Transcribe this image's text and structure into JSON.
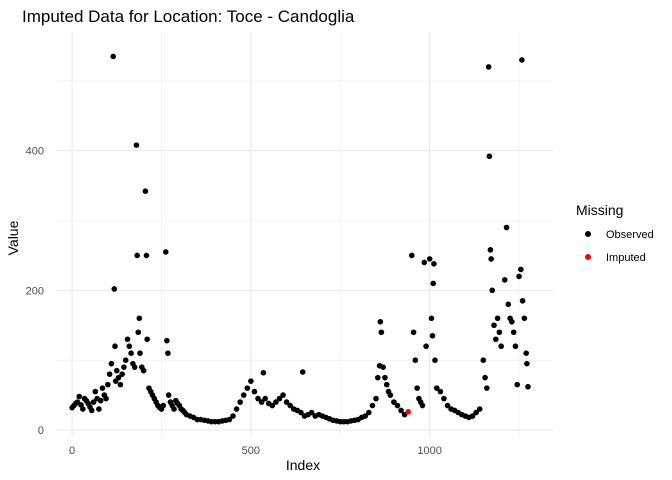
{
  "chart_data": {
    "type": "scatter",
    "title": "Imputed Data for Location: Toce - Candoglia",
    "xlabel": "Index",
    "ylabel": "Value",
    "xlim": [
      -45,
      1345
    ],
    "ylim": [
      -10,
      570
    ],
    "x_ticks": [
      0,
      500,
      1000
    ],
    "y_ticks": [
      0,
      200,
      400
    ],
    "x_tick_labels": [
      "0",
      "500",
      "1000"
    ],
    "y_tick_labels": [
      "0",
      "200",
      "400"
    ],
    "grid": true,
    "legend": {
      "title": "Missing",
      "placement": "right",
      "entries": [
        {
          "label": "Observed",
          "color": "#000000"
        },
        {
          "label": "Imputed",
          "color": "#ff0000"
        }
      ]
    },
    "series": [
      {
        "name": "Observed",
        "color": "#000000",
        "points": [
          [
            0,
            32
          ],
          [
            5,
            35
          ],
          [
            10,
            38
          ],
          [
            15,
            40
          ],
          [
            20,
            48
          ],
          [
            25,
            36
          ],
          [
            30,
            30
          ],
          [
            35,
            45
          ],
          [
            40,
            42
          ],
          [
            45,
            38
          ],
          [
            50,
            33
          ],
          [
            55,
            28
          ],
          [
            60,
            40
          ],
          [
            65,
            55
          ],
          [
            70,
            45
          ],
          [
            75,
            30
          ],
          [
            80,
            42
          ],
          [
            85,
            60
          ],
          [
            90,
            50
          ],
          [
            95,
            45
          ],
          [
            100,
            65
          ],
          [
            105,
            80
          ],
          [
            110,
            95
          ],
          [
            115,
            535
          ],
          [
            118,
            202
          ],
          [
            120,
            120
          ],
          [
            122,
            70
          ],
          [
            125,
            85
          ],
          [
            130,
            75
          ],
          [
            135,
            65
          ],
          [
            140,
            80
          ],
          [
            145,
            90
          ],
          [
            150,
            100
          ],
          [
            155,
            130
          ],
          [
            160,
            120
          ],
          [
            165,
            110
          ],
          [
            170,
            95
          ],
          [
            175,
            90
          ],
          [
            180,
            408
          ],
          [
            182,
            250
          ],
          [
            185,
            140
          ],
          [
            188,
            160
          ],
          [
            190,
            110
          ],
          [
            195,
            90
          ],
          [
            200,
            85
          ],
          [
            205,
            342
          ],
          [
            208,
            250
          ],
          [
            210,
            130
          ],
          [
            215,
            60
          ],
          [
            220,
            55
          ],
          [
            225,
            50
          ],
          [
            230,
            45
          ],
          [
            235,
            40
          ],
          [
            240,
            35
          ],
          [
            245,
            32
          ],
          [
            250,
            30
          ],
          [
            255,
            35
          ],
          [
            262,
            255
          ],
          [
            265,
            128
          ],
          [
            268,
            110
          ],
          [
            270,
            50
          ],
          [
            275,
            40
          ],
          [
            280,
            35
          ],
          [
            285,
            30
          ],
          [
            290,
            42
          ],
          [
            295,
            38
          ],
          [
            300,
            35
          ],
          [
            305,
            30
          ],
          [
            310,
            28
          ],
          [
            315,
            25
          ],
          [
            320,
            22
          ],
          [
            330,
            20
          ],
          [
            340,
            18
          ],
          [
            350,
            15
          ],
          [
            360,
            15
          ],
          [
            370,
            14
          ],
          [
            380,
            13
          ],
          [
            390,
            12
          ],
          [
            400,
            12
          ],
          [
            410,
            12
          ],
          [
            420,
            13
          ],
          [
            430,
            14
          ],
          [
            440,
            15
          ],
          [
            450,
            20
          ],
          [
            460,
            30
          ],
          [
            470,
            40
          ],
          [
            480,
            50
          ],
          [
            490,
            60
          ],
          [
            500,
            70
          ],
          [
            510,
            55
          ],
          [
            520,
            45
          ],
          [
            530,
            40
          ],
          [
            535,
            82
          ],
          [
            540,
            45
          ],
          [
            550,
            38
          ],
          [
            560,
            35
          ],
          [
            570,
            40
          ],
          [
            580,
            45
          ],
          [
            590,
            50
          ],
          [
            600,
            40
          ],
          [
            610,
            35
          ],
          [
            620,
            30
          ],
          [
            630,
            28
          ],
          [
            640,
            25
          ],
          [
            645,
            83
          ],
          [
            650,
            20
          ],
          [
            660,
            22
          ],
          [
            670,
            25
          ],
          [
            680,
            20
          ],
          [
            690,
            22
          ],
          [
            700,
            20
          ],
          [
            710,
            18
          ],
          [
            720,
            16
          ],
          [
            730,
            14
          ],
          [
            740,
            13
          ],
          [
            750,
            12
          ],
          [
            760,
            12
          ],
          [
            770,
            12
          ],
          [
            780,
            13
          ],
          [
            790,
            14
          ],
          [
            800,
            15
          ],
          [
            810,
            18
          ],
          [
            820,
            20
          ],
          [
            830,
            25
          ],
          [
            840,
            35
          ],
          [
            850,
            45
          ],
          [
            855,
            75
          ],
          [
            860,
            92
          ],
          [
            862,
            155
          ],
          [
            865,
            140
          ],
          [
            870,
            90
          ],
          [
            875,
            75
          ],
          [
            880,
            65
          ],
          [
            885,
            55
          ],
          [
            890,
            50
          ],
          [
            900,
            40
          ],
          [
            910,
            35
          ],
          [
            920,
            28
          ],
          [
            930,
            22
          ],
          [
            950,
            250
          ],
          [
            955,
            140
          ],
          [
            960,
            100
          ],
          [
            965,
            60
          ],
          [
            970,
            45
          ],
          [
            975,
            40
          ],
          [
            980,
            35
          ],
          [
            985,
            240
          ],
          [
            990,
            120
          ],
          [
            1000,
            245
          ],
          [
            1005,
            160
          ],
          [
            1008,
            135
          ],
          [
            1010,
            210
          ],
          [
            1012,
            238
          ],
          [
            1015,
            100
          ],
          [
            1020,
            60
          ],
          [
            1030,
            55
          ],
          [
            1040,
            45
          ],
          [
            1050,
            35
          ],
          [
            1060,
            30
          ],
          [
            1070,
            28
          ],
          [
            1080,
            25
          ],
          [
            1090,
            22
          ],
          [
            1100,
            20
          ],
          [
            1110,
            18
          ],
          [
            1120,
            20
          ],
          [
            1130,
            25
          ],
          [
            1140,
            30
          ],
          [
            1150,
            100
          ],
          [
            1155,
            75
          ],
          [
            1160,
            60
          ],
          [
            1165,
            520
          ],
          [
            1167,
            392
          ],
          [
            1170,
            258
          ],
          [
            1172,
            245
          ],
          [
            1175,
            200
          ],
          [
            1180,
            150
          ],
          [
            1185,
            130
          ],
          [
            1190,
            160
          ],
          [
            1195,
            140
          ],
          [
            1200,
            120
          ],
          [
            1210,
            215
          ],
          [
            1215,
            290
          ],
          [
            1220,
            180
          ],
          [
            1225,
            160
          ],
          [
            1230,
            155
          ],
          [
            1235,
            140
          ],
          [
            1240,
            120
          ],
          [
            1245,
            65
          ],
          [
            1250,
            220
          ],
          [
            1255,
            230
          ],
          [
            1258,
            530
          ],
          [
            1260,
            185
          ],
          [
            1265,
            160
          ],
          [
            1270,
            110
          ],
          [
            1272,
            95
          ],
          [
            1275,
            62
          ]
        ]
      },
      {
        "name": "Imputed",
        "color": "#ff0000",
        "points": [
          [
            940,
            26
          ]
        ]
      }
    ]
  }
}
